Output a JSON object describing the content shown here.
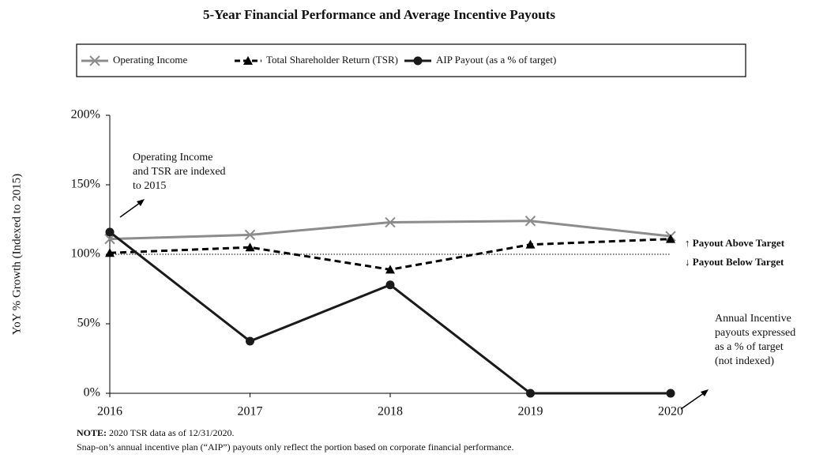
{
  "chart_data": {
    "type": "line",
    "title": "5-Year Financial Performance and Average Incentive Payouts",
    "y_label": "YoY % Growth (Indexed to 2015)",
    "categories": [
      "2016",
      "2017",
      "2018",
      "2019",
      "2020"
    ],
    "series": [
      {
        "name": "Operating Income",
        "color": "#8c8c8c",
        "marker": "x",
        "dash": false,
        "values": [
          111,
          114,
          123,
          124,
          113
        ]
      },
      {
        "name": "Total Shareholder Return (TSR)",
        "color": "#000000",
        "marker": "triangle",
        "dash": true,
        "values": [
          101,
          105,
          89,
          107,
          111
        ]
      },
      {
        "name": "AIP Payout (as a % of target)",
        "color": "#1a1a1a",
        "marker": "circle",
        "dash": false,
        "values": [
          116,
          37.5,
          78,
          0,
          0
        ]
      }
    ],
    "ylim": [
      0,
      200
    ],
    "yticks": [
      {
        "value": 0,
        "label": "0%"
      },
      {
        "value": 50,
        "label": "50%"
      },
      {
        "value": 100,
        "label": "100%"
      },
      {
        "value": 150,
        "label": "150%"
      },
      {
        "value": 200,
        "label": "200%"
      }
    ],
    "reference_line": 100,
    "legend": "top",
    "annotations": {
      "indexed": [
        "Operating Income",
        "and TSR are indexed",
        "to 2015"
      ],
      "payout_above": "↑ Payout Above Target",
      "payout_below": "↓ Payout Below Target",
      "not_indexed": [
        "Annual Incentive",
        "payouts expressed",
        "as a % of target",
        "(not indexed)"
      ]
    },
    "note_label": "NOTE:",
    "note_text": "2020 TSR data as of 12/31/2020.",
    "footnote": "Snap-on’s annual incentive plan (“AIP”) payouts only reflect the portion based on corporate financial performance."
  }
}
